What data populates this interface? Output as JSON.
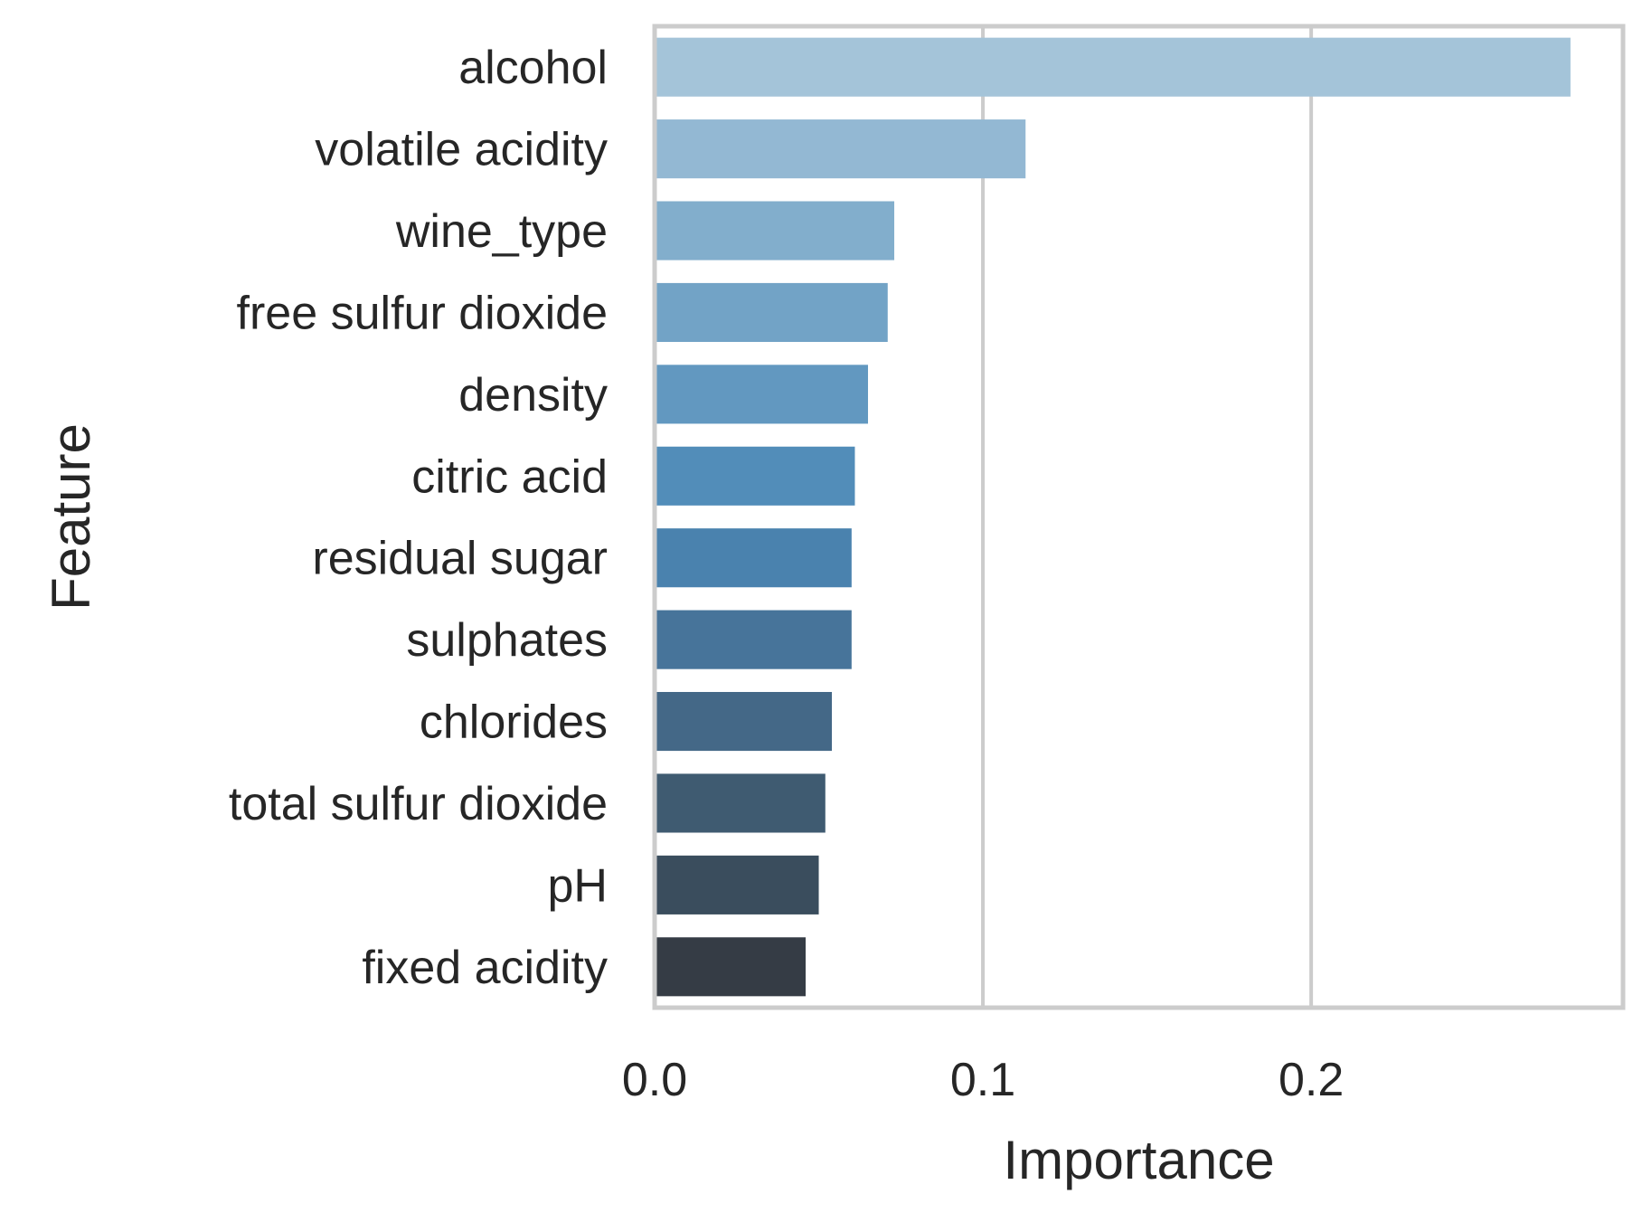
{
  "chart_data": {
    "type": "bar",
    "orientation": "horizontal",
    "title": "",
    "xlabel": "Importance",
    "ylabel": "Feature",
    "categories": [
      "alcohol",
      "volatile acidity",
      "wine_type",
      "free sulfur dioxide",
      "density",
      "citric acid",
      "residual sugar",
      "sulphates",
      "chlorides",
      "total sulfur dioxide",
      "pH",
      "fixed acidity"
    ],
    "values": [
      0.279,
      0.113,
      0.073,
      0.071,
      0.065,
      0.061,
      0.06,
      0.06,
      0.054,
      0.052,
      0.05,
      0.046
    ],
    "colors": [
      "#a4c4d9",
      "#93b8d3",
      "#82aecc",
      "#72a3c6",
      "#6298c0",
      "#528db9",
      "#4a82ae",
      "#47749a",
      "#446887",
      "#3f5b71",
      "#3a4d5d",
      "#353c45"
    ],
    "xlim": [
      0.0,
      0.295
    ],
    "xticks": [
      0.0,
      0.1,
      0.2
    ],
    "xtick_labels": [
      "0.0",
      "0.1",
      "0.2"
    ],
    "grid": true,
    "grid_color": "#cccccc",
    "spine_color": "#cccccc",
    "text_color": "#262626"
  }
}
